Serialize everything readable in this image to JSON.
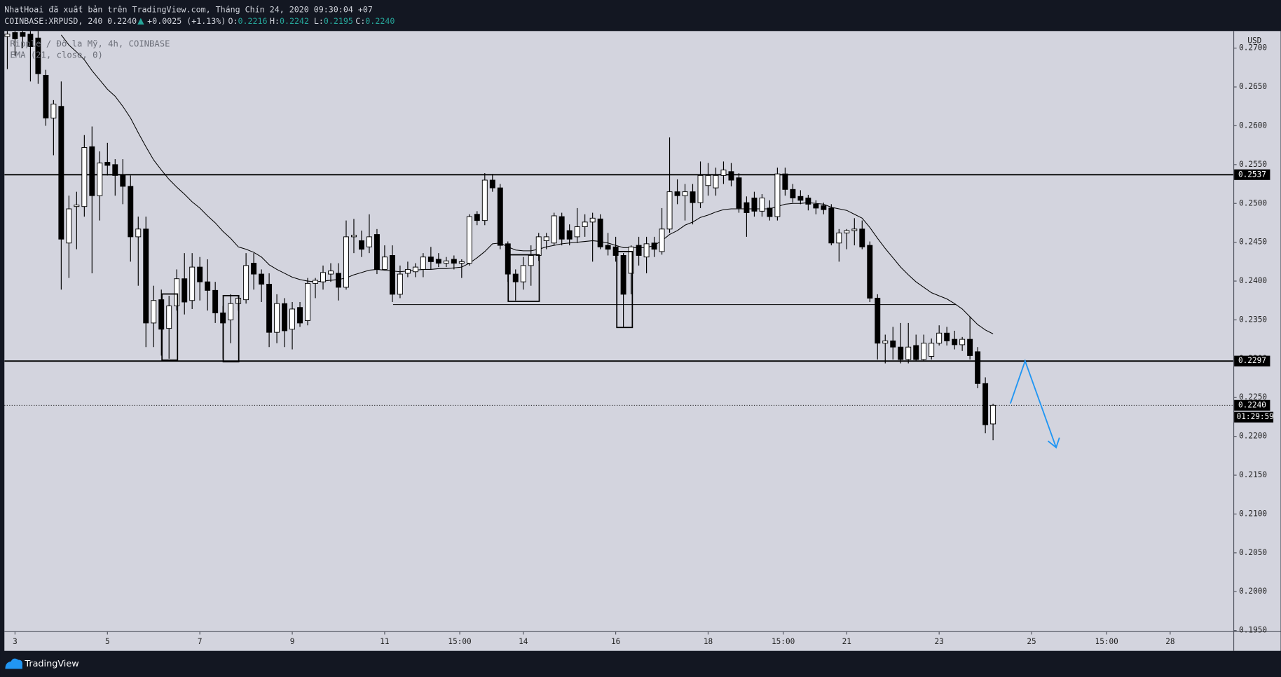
{
  "header": {
    "line1": "NhatHoai đã xuất bản trên TradingView.com, Tháng Chín 24, 2020 09:30:04 +07",
    "symbol": "COINBASE:XRPUSD, 240",
    "last": "0.2240",
    "change": "+0.0025 (+1.13%)",
    "o_label": "O:",
    "o": "0.2216",
    "h_label": "H:",
    "h": "0.2242",
    "l_label": "L:",
    "l": "0.2195",
    "c_label": "C:",
    "c": "0.2240"
  },
  "chart_data": {
    "type": "candlestick",
    "title": "Ripple / Đô la Mỹ, 4h, COINBASE",
    "y_axis_label": "USD",
    "up_color": "#ffffff",
    "down_color": "#000000",
    "wick_color": "#000000",
    "grid": false,
    "xlim": [
      -0.38,
      159.2
    ],
    "ylim": [
      0.1949,
      0.2722
    ],
    "xticks": [
      {
        "value": 1,
        "label": "3"
      },
      {
        "value": 13,
        "label": "5"
      },
      {
        "value": 25,
        "label": "7"
      },
      {
        "value": 37,
        "label": "9"
      },
      {
        "value": 49,
        "label": "11"
      },
      {
        "value": 58.75,
        "label": "15:00"
      },
      {
        "value": 67,
        "label": "14"
      },
      {
        "value": 79,
        "label": "16"
      },
      {
        "value": 91,
        "label": "18"
      },
      {
        "value": 100.75,
        "label": "15:00"
      },
      {
        "value": 109,
        "label": "21"
      },
      {
        "value": 121,
        "label": "23"
      },
      {
        "value": 133,
        "label": "25"
      },
      {
        "value": 142.75,
        "label": "15:00"
      },
      {
        "value": 151,
        "label": "28"
      }
    ],
    "yticks": [
      {
        "value": 0.195,
        "label": "0.1950"
      },
      {
        "value": 0.2,
        "label": "0.2000"
      },
      {
        "value": 0.205,
        "label": "0.2050"
      },
      {
        "value": 0.21,
        "label": "0.2100"
      },
      {
        "value": 0.215,
        "label": "0.2150"
      },
      {
        "value": 0.22,
        "label": "0.2200"
      },
      {
        "value": 0.225,
        "label": "0.2250"
      },
      {
        "value": 0.23,
        "label": "0.2300"
      },
      {
        "value": 0.235,
        "label": "0.2350"
      },
      {
        "value": 0.24,
        "label": "0.2400"
      },
      {
        "value": 0.245,
        "label": "0.2450"
      },
      {
        "value": 0.25,
        "label": "0.2500"
      },
      {
        "value": 0.255,
        "label": "0.2550"
      },
      {
        "value": 0.26,
        "label": "0.2600"
      },
      {
        "value": 0.265,
        "label": "0.2650"
      },
      {
        "value": 0.27,
        "label": "0.2700"
      }
    ],
    "x": [
      0,
      1,
      2,
      3,
      4,
      5,
      6,
      7,
      8,
      9,
      10,
      11,
      12,
      13,
      14,
      15,
      16,
      17,
      18,
      19,
      20,
      21,
      22,
      23,
      24,
      25,
      26,
      27,
      28,
      29,
      30,
      31,
      32,
      33,
      34,
      35,
      36,
      37,
      38,
      39,
      40,
      41,
      42,
      43,
      44,
      45,
      46,
      47,
      48,
      49,
      50,
      51,
      52,
      53,
      54,
      55,
      56,
      57,
      58,
      59,
      60,
      61,
      62,
      63,
      64,
      65,
      66,
      67,
      68,
      69,
      70,
      71,
      72,
      73,
      74,
      75,
      76,
      77,
      78,
      79,
      80,
      81,
      82,
      83,
      84,
      85,
      86,
      87,
      88,
      89,
      90,
      91,
      92,
      93,
      94,
      95,
      96,
      97,
      98,
      99,
      100,
      101,
      102,
      103,
      104,
      105,
      106,
      107,
      108,
      109,
      110,
      111,
      112,
      113,
      114,
      115,
      116,
      117,
      118,
      119,
      120,
      121,
      122,
      123,
      124,
      125,
      126,
      127,
      128
    ],
    "open": [
      0.2715,
      0.272,
      0.272,
      0.2718,
      0.2713,
      0.2665,
      0.261,
      0.2625,
      0.2449,
      0.2496,
      0.2496,
      0.2573,
      0.251,
      0.2553,
      0.255,
      0.2536,
      0.2522,
      0.2457,
      0.2467,
      0.2346,
      0.2376,
      0.2339,
      0.2368,
      0.2403,
      0.2375,
      0.2418,
      0.2399,
      0.2388,
      0.2359,
      0.235,
      0.2371,
      0.2376,
      0.2423,
      0.2409,
      0.2396,
      0.2334,
      0.2371,
      0.2338,
      0.2366,
      0.2349,
      0.2397,
      0.2399,
      0.2409,
      0.241,
      0.2392,
      0.2457,
      0.2452,
      0.2444,
      0.246,
      0.2415,
      0.2433,
      0.2383,
      0.241,
      0.2412,
      0.2415,
      0.2431,
      0.2428,
      0.2423,
      0.2428,
      0.2423,
      0.2423,
      0.2486,
      0.2478,
      0.253,
      0.252,
      0.2448,
      0.2409,
      0.2399,
      0.242,
      0.2433,
      0.2452,
      0.2449,
      0.2483,
      0.2465,
      0.2457,
      0.247,
      0.2476,
      0.248,
      0.2446,
      0.2444,
      0.2433,
      0.241,
      0.2446,
      0.2431,
      0.2449,
      0.2438,
      0.2467,
      0.2515,
      0.251,
      0.2515,
      0.2501,
      0.2523,
      0.252,
      0.2536,
      0.2541,
      0.2533,
      0.2501,
      0.2507,
      0.249,
      0.2494,
      0.2483,
      0.2538,
      0.2518,
      0.2509,
      0.2507,
      0.2499,
      0.2497,
      0.2494,
      0.2449,
      0.2462,
      0.2465,
      0.2467,
      0.2446,
      0.2378,
      0.232,
      0.2323,
      0.2315,
      0.2299,
      0.2317,
      0.2299,
      0.2303,
      0.232,
      0.2333,
      0.2325,
      0.2318,
      0.2325,
      0.2309,
      0.2268,
      0.2216
    ],
    "high": [
      0.2722,
      0.2722,
      0.2722,
      0.2722,
      0.2722,
      0.2672,
      0.2633,
      0.2657,
      0.251,
      0.2515,
      0.2588,
      0.2599,
      0.2567,
      0.2578,
      0.2557,
      0.2557,
      0.2536,
      0.2483,
      0.2483,
      0.2394,
      0.2389,
      0.2381,
      0.2415,
      0.2436,
      0.2436,
      0.2431,
      0.2428,
      0.2399,
      0.2368,
      0.2383,
      0.2381,
      0.2436,
      0.2436,
      0.2415,
      0.241,
      0.2383,
      0.2378,
      0.2373,
      0.2373,
      0.2404,
      0.2404,
      0.242,
      0.2423,
      0.2423,
      0.2478,
      0.248,
      0.2465,
      0.2486,
      0.2467,
      0.2446,
      0.2446,
      0.242,
      0.2425,
      0.2423,
      0.2436,
      0.2444,
      0.2436,
      0.2431,
      0.2433,
      0.2428,
      0.2486,
      0.249,
      0.2539,
      0.2538,
      0.2525,
      0.2451,
      0.2415,
      0.2431,
      0.2446,
      0.2462,
      0.2462,
      0.2488,
      0.2488,
      0.2473,
      0.2494,
      0.2486,
      0.2488,
      0.2486,
      0.2462,
      0.2457,
      0.2436,
      0.2446,
      0.2457,
      0.2457,
      0.2457,
      0.2494,
      0.2585,
      0.2531,
      0.2525,
      0.2525,
      0.2554,
      0.2552,
      0.2546,
      0.2554,
      0.2552,
      0.2539,
      0.2509,
      0.2515,
      0.2512,
      0.2504,
      0.2546,
      0.2546,
      0.2525,
      0.2517,
      0.2511,
      0.2504,
      0.2501,
      0.2499,
      0.2467,
      0.2467,
      0.2481,
      0.2478,
      0.2451,
      0.2383,
      0.2331,
      0.2341,
      0.2346,
      0.2346,
      0.2331,
      0.2331,
      0.2326,
      0.2343,
      0.2341,
      0.2336,
      0.2328,
      0.2354,
      0.2315,
      0.2276,
      0.2242
    ],
    "low": [
      0.2673,
      0.269,
      0.27,
      0.2657,
      0.2654,
      0.26,
      0.2562,
      0.2389,
      0.2404,
      0.2441,
      0.2483,
      0.241,
      0.2478,
      0.2536,
      0.251,
      0.2499,
      0.2425,
      0.2394,
      0.2315,
      0.2315,
      0.2304,
      0.23,
      0.2362,
      0.2357,
      0.2364,
      0.2375,
      0.2362,
      0.2346,
      0.23,
      0.232,
      0.2362,
      0.2371,
      0.2389,
      0.2373,
      0.2315,
      0.232,
      0.2315,
      0.2312,
      0.2341,
      0.2343,
      0.2378,
      0.2389,
      0.2399,
      0.2375,
      0.2389,
      0.2436,
      0.2431,
      0.2436,
      0.2409,
      0.2415,
      0.2373,
      0.2378,
      0.2405,
      0.2405,
      0.2405,
      0.2415,
      0.2418,
      0.2418,
      0.2415,
      0.2404,
      0.242,
      0.2472,
      0.2472,
      0.2515,
      0.2441,
      0.2399,
      0.2375,
      0.2389,
      0.2394,
      0.2426,
      0.2441,
      0.2446,
      0.2446,
      0.2446,
      0.2449,
      0.2457,
      0.2425,
      0.2441,
      0.2433,
      0.2425,
      0.2341,
      0.2383,
      0.242,
      0.241,
      0.2431,
      0.2434,
      0.2462,
      0.2499,
      0.2478,
      0.2473,
      0.2494,
      0.251,
      0.251,
      0.2525,
      0.2522,
      0.2488,
      0.2457,
      0.2483,
      0.2483,
      0.2478,
      0.2478,
      0.251,
      0.2501,
      0.2499,
      0.2491,
      0.2486,
      0.2486,
      0.2446,
      0.2425,
      0.2441,
      0.2446,
      0.2441,
      0.2373,
      0.2299,
      0.2294,
      0.2299,
      0.2294,
      0.2294,
      0.2297,
      0.2297,
      0.2299,
      0.2317,
      0.2317,
      0.2312,
      0.231,
      0.2299,
      0.2262,
      0.2204,
      0.2195
    ],
    "close": [
      0.2718,
      0.2712,
      0.2715,
      0.2702,
      0.2667,
      0.261,
      0.2628,
      0.2454,
      0.2493,
      0.2498,
      0.2572,
      0.251,
      0.2552,
      0.2549,
      0.2536,
      0.2522,
      0.2457,
      0.2467,
      0.2346,
      0.2375,
      0.2338,
      0.2368,
      0.2403,
      0.2373,
      0.2418,
      0.2399,
      0.2388,
      0.2359,
      0.2346,
      0.2371,
      0.2378,
      0.242,
      0.2409,
      0.2396,
      0.2334,
      0.2371,
      0.2336,
      0.2364,
      0.2346,
      0.2397,
      0.2401,
      0.2411,
      0.2413,
      0.2392,
      0.2457,
      0.2459,
      0.2441,
      0.2457,
      0.2415,
      0.2431,
      0.2383,
      0.2409,
      0.2415,
      0.2418,
      0.2431,
      0.2425,
      0.2423,
      0.2426,
      0.2423,
      0.2425,
      0.2483,
      0.2478,
      0.253,
      0.252,
      0.2446,
      0.2409,
      0.2399,
      0.242,
      0.2433,
      0.2457,
      0.2457,
      0.2484,
      0.2454,
      0.2454,
      0.247,
      0.2476,
      0.2481,
      0.2444,
      0.2441,
      0.2433,
      0.2383,
      0.2444,
      0.2433,
      0.2448,
      0.2441,
      0.2467,
      0.2515,
      0.251,
      0.2515,
      0.2501,
      0.2536,
      0.2536,
      0.2536,
      0.2543,
      0.253,
      0.2494,
      0.2488,
      0.249,
      0.2507,
      0.2483,
      0.2538,
      0.2518,
      0.2507,
      0.2504,
      0.2499,
      0.2494,
      0.2492,
      0.2449,
      0.2462,
      0.2465,
      0.2467,
      0.2444,
      0.2378,
      0.232,
      0.2323,
      0.2315,
      0.2299,
      0.2315,
      0.2299,
      0.232,
      0.232,
      0.2333,
      0.2323,
      0.2318,
      0.2325,
      0.2304,
      0.2268,
      0.2215,
      0.224
    ],
    "series": [
      {
        "name": "EMA (21, close, 0)",
        "color": "#000000",
        "values": [
          null,
          null,
          null,
          null,
          null,
          null,
          null,
          0.2717,
          0.2704,
          0.2695,
          0.2685,
          0.2671,
          0.2659,
          0.2647,
          0.2638,
          0.2625,
          0.261,
          0.2591,
          0.2573,
          0.2556,
          0.2543,
          0.2531,
          0.2521,
          0.2512,
          0.2502,
          0.2494,
          0.2484,
          0.2475,
          0.2464,
          0.2455,
          0.2444,
          0.2441,
          0.2437,
          0.2431,
          0.2421,
          0.2415,
          0.241,
          0.2405,
          0.2402,
          0.24,
          0.2399,
          0.24,
          0.2401,
          0.2402,
          0.2404,
          0.2408,
          0.2411,
          0.2414,
          0.2415,
          0.2414,
          0.2413,
          0.2412,
          0.2413,
          0.2414,
          0.2415,
          0.2415,
          0.2416,
          0.2416,
          0.2417,
          0.2418,
          0.2423,
          0.243,
          0.2438,
          0.2448,
          0.2449,
          0.2444,
          0.244,
          0.2439,
          0.2439,
          0.2441,
          0.2444,
          0.2446,
          0.2448,
          0.2449,
          0.245,
          0.2451,
          0.2452,
          0.2451,
          0.2449,
          0.2446,
          0.2443,
          0.2443,
          0.2443,
          0.2443,
          0.2446,
          0.2452,
          0.246,
          0.2465,
          0.2472,
          0.2476,
          0.2482,
          0.2485,
          0.2489,
          0.2492,
          0.2493,
          0.2493,
          0.2493,
          0.2493,
          0.2493,
          0.2493,
          0.2496,
          0.2499,
          0.25,
          0.25,
          0.2501,
          0.25,
          0.2499,
          0.2495,
          0.2493,
          0.2491,
          0.2486,
          0.2481,
          0.2469,
          0.2455,
          0.2442,
          0.243,
          0.2418,
          0.2408,
          0.2399,
          0.2392,
          0.2385,
          0.2381,
          0.2377,
          0.2371,
          0.2364,
          0.2354,
          0.2344,
          0.2337,
          0.2332
        ]
      }
    ],
    "levels": [
      {
        "value": 0.2537,
        "label": "0.2537"
      },
      {
        "value": 0.2297,
        "label": "0.2297"
      }
    ],
    "last_price": {
      "value": 0.224,
      "label": "0.2240"
    },
    "countdown": "01:29:59"
  },
  "footer": {
    "brand": "TradingView"
  }
}
